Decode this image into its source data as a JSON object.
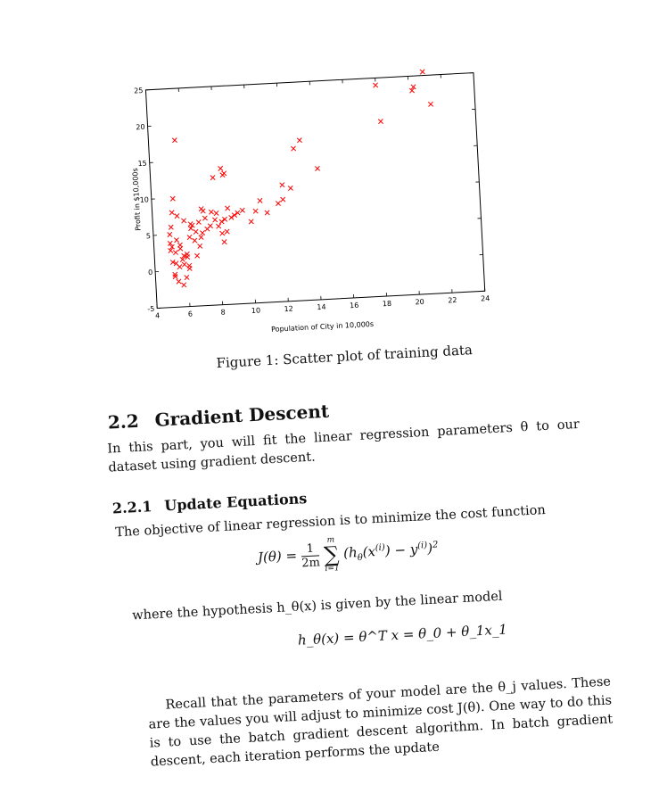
{
  "figure": {
    "caption": "Figure 1: Scatter plot of training data"
  },
  "chart_data": {
    "type": "scatter",
    "title": "",
    "xlabel": "Population of City in 10,000s",
    "ylabel": "Profit in $10,000s",
    "xlim": [
      4,
      24
    ],
    "ylim": [
      -5,
      25
    ],
    "x_ticks": [
      "4",
      "6",
      "8",
      "10",
      "12",
      "14",
      "16",
      "18",
      "20",
      "22",
      "24"
    ],
    "y_ticks": [
      "-5",
      "0",
      "5",
      "10",
      "15",
      "20",
      "25"
    ],
    "marker": "x",
    "marker_color": "#ff0000",
    "grid": false,
    "legend": "none",
    "series": [
      {
        "x": [
          5.1,
          5.3,
          5.0,
          5.4,
          5.5,
          5.2,
          5.8,
          5.6,
          5.1,
          5.0,
          5.7,
          6.0,
          6.2,
          5.9,
          6.3,
          6.1,
          5.4,
          5.5,
          5.2,
          5.0,
          5.3,
          5.6,
          6.4,
          6.5,
          6.0,
          5.8,
          6.6,
          6.8,
          7.0,
          7.2,
          6.9,
          7.5,
          7.8,
          7.3,
          7.0,
          7.6,
          8.0,
          8.2,
          8.4,
          7.9,
          8.5,
          8.8,
          9.0,
          9.2,
          8.6,
          9.5,
          10.0,
          10.3,
          10.6,
          11.0,
          8.4,
          8.5,
          8.3,
          5.6,
          7.8,
          11.7,
          12.0,
          12.8,
          13.2,
          14.2,
          12.0,
          12.5,
          18.0,
          18.2,
          20.2,
          20.3,
          21.3,
          20.9,
          5.1,
          5.2,
          6.6,
          6.1,
          6.8,
          5.7,
          5.3,
          5.9,
          8.2,
          6.3,
          7.1,
          8.3
        ],
        "y": [
          1.2,
          2.5,
          3.8,
          4.2,
          0.5,
          -0.8,
          2.0,
          3.0,
          6.0,
          5.0,
          1.5,
          1.8,
          4.5,
          6.8,
          5.7,
          0.2,
          -1.5,
          7.5,
          8.0,
          2.8,
          9.9,
          3.5,
          6.1,
          4.0,
          2.2,
          0.8,
          5.2,
          6.5,
          5.0,
          7.0,
          4.4,
          5.9,
          6.7,
          5.5,
          8.3,
          7.8,
          5.8,
          6.4,
          6.7,
          7.6,
          5.0,
          6.9,
          7.2,
          7.5,
          8.2,
          7.8,
          6.2,
          7.6,
          9.0,
          7.3,
          12.8,
          13.0,
          13.7,
          17.9,
          12.5,
          8.5,
          9.0,
          15.9,
          17.0,
          13.0,
          11.0,
          10.5,
          24.0,
          19.0,
          23.0,
          23.5,
          21.0,
          25.5,
          3.3,
          -0.5,
          1.9,
          0.6,
          3.2,
          -2.0,
          1.0,
          -1.0,
          4.8,
          6.3,
          8.0,
          3.6
        ]
      }
    ]
  },
  "section": {
    "number": "2.2",
    "title": "Gradient Descent",
    "intro": "In this part, you will fit the linear regression parameters θ to our dataset using gradient descent."
  },
  "subsection": {
    "number": "2.2.1",
    "title": "Update Equations",
    "text1": "The objective of linear regression is to minimize the cost function",
    "text2": "where the hypothesis h_θ(x) is given by the linear model",
    "text3": "Recall that the parameters of your model are the θ_j values. These are the values you will adjust to minimize cost J(θ). One way to do this is to use the batch gradient descent algorithm. In batch gradient descent, each iteration performs the update"
  },
  "equations": {
    "cost_lhs": "J(θ) =",
    "cost_frac_num": "1",
    "cost_frac_den": "2m",
    "sum_upper": "m",
    "sum_lower": "i=1",
    "cost_body": "(h",
    "cost_body_sub": "θ",
    "cost_body_rest": "(x",
    "cost_sup_i1": "(i)",
    "cost_body_mid": ") − y",
    "cost_sup_i2": "(i)",
    "cost_close": ")",
    "cost_sq": "2",
    "hyp": "h_θ(x) = θ^T x = θ_0 + θ_1x_1"
  }
}
